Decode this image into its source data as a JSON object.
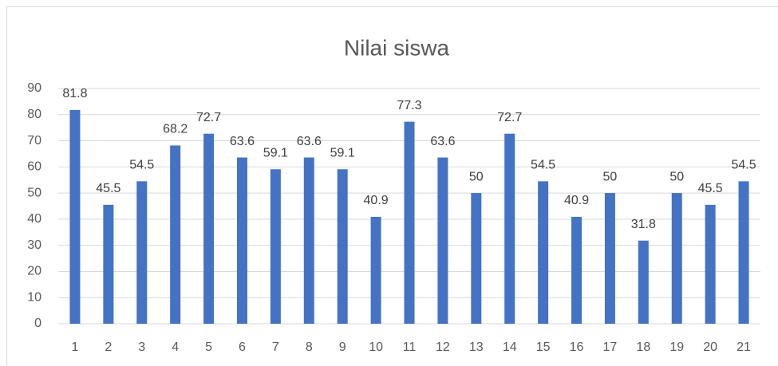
{
  "chart_data": {
    "type": "bar",
    "title": "Nilai siswa",
    "categories": [
      "1",
      "2",
      "3",
      "4",
      "5",
      "6",
      "7",
      "8",
      "9",
      "10",
      "11",
      "12",
      "13",
      "14",
      "15",
      "16",
      "17",
      "18",
      "19",
      "20",
      "21"
    ],
    "values": [
      81.8,
      45.5,
      54.5,
      68.2,
      72.7,
      63.6,
      59.1,
      63.6,
      59.1,
      40.9,
      77.3,
      63.6,
      50,
      72.7,
      54.5,
      40.9,
      50,
      31.8,
      50,
      45.5,
      54.5
    ],
    "color": "#4472c4",
    "ylim": [
      0,
      90
    ],
    "yticks": [
      0,
      10,
      20,
      30,
      40,
      50,
      60,
      70,
      80,
      90
    ],
    "grid": true
  }
}
